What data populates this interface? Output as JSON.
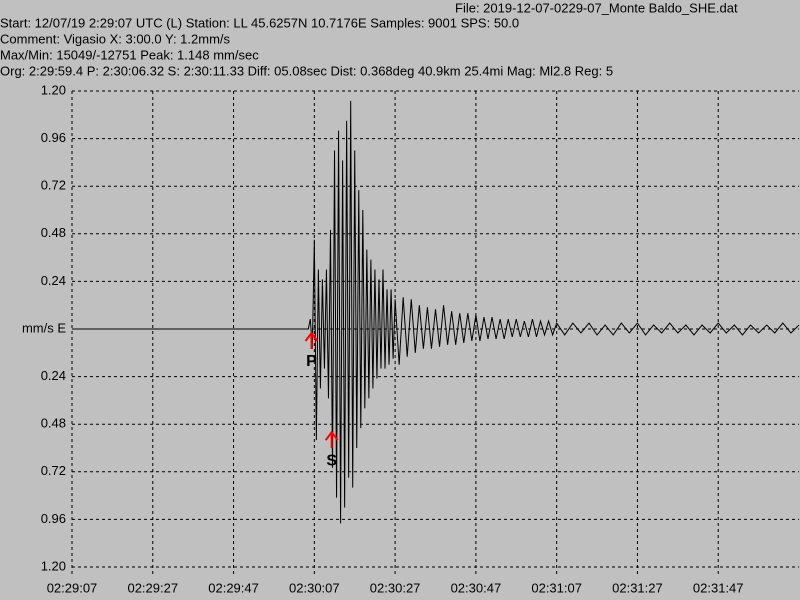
{
  "chart_data": {
    "type": "line",
    "title": "File: 2019-12-07-0229-07_Monte Baldo_SHE.dat",
    "info_lines": [
      "Start: 12/07/19  2:29:07 UTC (L) Station: LL 45.6257N 10.7176E Samples: 9001   SPS: 50.0",
      "Comment: Vigasio   X: 3:00.0 Y: 1.2mm/s",
      "Max/Min: 15049/-12751  Peak: 1.148 mm/sec",
      "Org: 2:29:59.4 P: 2:30:06.32 S: 2:30:11.33 Diff: 05.08sec Dist: 0.368deg 40.9km 25.4mi  Mag: Ml2.8 Reg: 5"
    ],
    "xlim": [
      0,
      180
    ],
    "xticks": [
      {
        "value": 0,
        "label": "02:29:07"
      },
      {
        "value": 20,
        "label": "02:29:27"
      },
      {
        "value": 40,
        "label": "02:29:47"
      },
      {
        "value": 60,
        "label": "02:30:07"
      },
      {
        "value": 80,
        "label": "02:30:27"
      },
      {
        "value": 100,
        "label": "02:30:47"
      },
      {
        "value": 120,
        "label": "02:31:07"
      },
      {
        "value": 140,
        "label": "02:31:27"
      },
      {
        "value": 160,
        "label": "02:31:47"
      }
    ],
    "ylim": [
      -1.2,
      1.2
    ],
    "yticks": [
      {
        "value": 1.2,
        "label": "1.20"
      },
      0.96,
      0.72,
      0.48,
      0.24,
      {
        "value": 0,
        "label": "mm/s  E"
      },
      {
        "value": -0.24,
        "label": "0.24"
      },
      {
        "value": -0.48,
        "label": "0.48"
      },
      {
        "value": -0.72,
        "label": "0.72"
      },
      {
        "value": -0.96,
        "label": "0.96"
      },
      {
        "value": -1.2,
        "label": "1.20"
      }
    ],
    "grid": true,
    "series": [
      {
        "color": "#000000",
        "x": [
          0,
          58.5,
          59.0,
          59.5,
          60.0,
          60.5,
          61.0,
          61.5,
          62.0,
          62.5,
          63.0,
          63.5,
          64.0,
          64.5,
          65.0,
          65.5,
          66.0,
          66.5,
          67.0,
          67.5,
          68.0,
          68.5,
          69.0,
          69.5,
          70.0,
          70.5,
          71.0,
          71.5,
          72.0,
          72.5,
          73.0,
          73.5,
          74.0,
          74.5,
          75.0,
          75.5,
          76.0,
          76.5,
          77.0,
          77.5,
          78.0,
          78.5,
          79.0,
          79.5,
          80.0,
          81,
          82,
          83,
          84,
          85,
          86,
          87,
          88,
          89,
          90,
          91,
          92,
          93,
          94,
          95,
          96,
          97,
          98,
          99,
          100,
          101,
          102,
          103,
          104,
          105,
          106,
          107,
          108,
          109,
          110,
          111,
          112,
          113,
          114,
          115,
          116,
          117,
          118,
          119,
          120,
          122,
          124,
          126,
          128,
          130,
          132,
          134,
          136,
          138,
          140,
          142,
          144,
          146,
          148,
          150,
          152,
          154,
          156,
          158,
          160,
          162,
          164,
          166,
          168,
          170,
          172,
          174,
          176,
          178,
          180
        ],
        "values": [
          0,
          0,
          0.05,
          -0.1,
          0.45,
          -0.56,
          0.3,
          -0.3,
          0.25,
          -0.2,
          0.3,
          -0.35,
          0.5,
          -0.7,
          0.9,
          -0.85,
          1.0,
          -0.98,
          0.85,
          -0.9,
          1.05,
          -0.75,
          1.15,
          -0.8,
          0.9,
          -0.6,
          0.7,
          -0.5,
          0.6,
          -0.4,
          0.4,
          -0.35,
          0.35,
          -0.3,
          0.3,
          -0.25,
          0.25,
          -0.2,
          0.3,
          -0.2,
          0.2,
          -0.18,
          0.2,
          -0.15,
          0.15,
          -0.18,
          0.16,
          -0.14,
          0.15,
          -0.12,
          0.12,
          -0.1,
          0.11,
          -0.1,
          0.1,
          -0.09,
          0.12,
          -0.08,
          0.09,
          -0.08,
          0.08,
          -0.07,
          0.08,
          -0.06,
          0.07,
          -0.06,
          0.06,
          -0.05,
          0.06,
          -0.05,
          0.05,
          -0.05,
          0.05,
          -0.04,
          0.05,
          -0.04,
          0.04,
          -0.04,
          0.05,
          -0.04,
          0.04,
          -0.03,
          0.04,
          -0.03,
          0.03,
          -0.03,
          0.03,
          -0.02,
          0.03,
          -0.03,
          0.02,
          -0.03,
          0.03,
          -0.02,
          0.03,
          -0.03,
          0.02,
          -0.02,
          0.03,
          -0.02,
          0.02,
          -0.03,
          0.02,
          -0.02,
          0.03,
          -0.02,
          0.02,
          -0.03,
          0.02,
          -0.02,
          0.02,
          -0.02,
          0.03,
          -0.02,
          0.02
        ]
      }
    ],
    "annotations": [
      {
        "text": "P",
        "x": 59.3,
        "y": 0,
        "color": "#ff0000"
      },
      {
        "text": "S",
        "x": 64.3,
        "y": -0.5,
        "color": "#ff0000"
      }
    ]
  }
}
